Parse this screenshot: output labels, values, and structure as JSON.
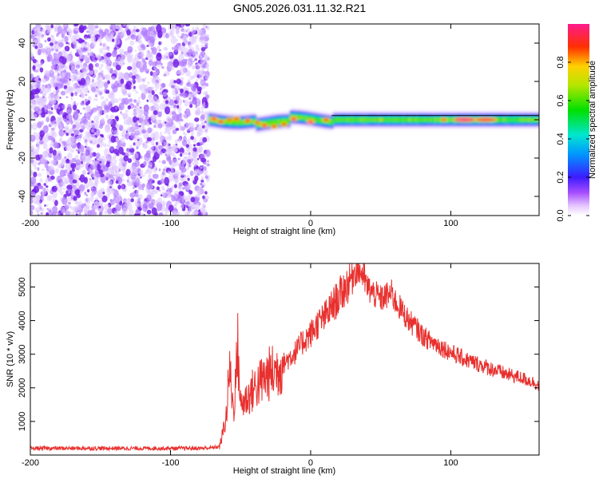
{
  "title": "GN05.2026.031.11.32.R21",
  "colors": {
    "snr_line": "#e8302e",
    "scatter_purple": "#7a2be2",
    "frame": "#000000"
  },
  "chart_data": [
    {
      "type": "heatmap",
      "title": "GN05.2026.031.11.32.R21",
      "xlabel": "Height of straight line (km)",
      "ylabel": "Frequency (Hz)",
      "xlim": [
        -200,
        163
      ],
      "ylim": [
        -50,
        50
      ],
      "xticks": [
        -200,
        -100,
        0,
        100
      ],
      "xtick_labels": [
        "-200",
        "-100",
        "0",
        "100"
      ],
      "yticks": [
        -40,
        -20,
        0,
        20,
        40
      ],
      "ytick_labels": [
        "-40",
        "-20",
        "0",
        "20",
        "40"
      ],
      "noise_region": {
        "x_start": -200,
        "x_end": -73,
        "amplitude_range": [
          0.0,
          0.15
        ]
      },
      "signal_band": {
        "x_start": -75,
        "x_end": 163,
        "frequency_center": 0,
        "half_width_hz": 3
      },
      "peaks": [
        {
          "x": -69,
          "y": 0.5,
          "amp": 0.95
        },
        {
          "x": -64,
          "y": -1,
          "amp": 0.9
        },
        {
          "x": -58,
          "y": 0,
          "amp": 0.85
        },
        {
          "x": -53,
          "y": 0.5,
          "amp": 0.9
        },
        {
          "x": -45,
          "y": -0.5,
          "amp": 0.9
        },
        {
          "x": -38,
          "y": -1.5,
          "amp": 0.85
        },
        {
          "x": -33,
          "y": -3,
          "amp": 0.92
        },
        {
          "x": -26,
          "y": -3.5,
          "amp": 0.9
        },
        {
          "x": -19,
          "y": -2.5,
          "amp": 0.88
        },
        {
          "x": -12,
          "y": 0.5,
          "amp": 0.95
        },
        {
          "x": 0,
          "y": -1,
          "amp": 0.98
        },
        {
          "x": 11,
          "y": 0,
          "amp": 0.9
        },
        {
          "x": 50,
          "y": 0,
          "amp": 0.7
        },
        {
          "x": 75,
          "y": 0,
          "amp": 0.65
        },
        {
          "x": 95,
          "y": 0,
          "amp": 0.85
        },
        {
          "x": 110,
          "y": 0,
          "amp": 1.0
        },
        {
          "x": 125,
          "y": 0,
          "amp": 0.95
        },
        {
          "x": 145,
          "y": 0,
          "amp": 0.6
        }
      ],
      "colorbar": {
        "label": "Normalized spectral amplitude",
        "range": [
          0,
          1
        ],
        "ticks": [
          0.0,
          0.2,
          0.4,
          0.6,
          0.8
        ],
        "tick_labels": [
          "0.0",
          "0.2",
          "0.4",
          "0.6",
          "0.8"
        ]
      }
    },
    {
      "type": "line",
      "xlabel": "Height of straight line (km)",
      "ylabel": "SNR (10 * v/v)",
      "xlim": [
        -200,
        163
      ],
      "ylim": [
        0,
        5700
      ],
      "xticks": [
        -200,
        -100,
        0,
        100
      ],
      "xtick_labels": [
        "-200",
        "-100",
        "0",
        "100"
      ],
      "yticks": [
        1000,
        2000,
        3000,
        4000,
        5000
      ],
      "ytick_labels": [
        "1000",
        "2000",
        "3000",
        "4000",
        "5000"
      ],
      "series": [
        {
          "name": "SNR",
          "x": [
            -200,
            -180,
            -160,
            -140,
            -120,
            -100,
            -80,
            -70,
            -65,
            -63,
            -60,
            -58,
            -55,
            -52,
            -50,
            -45,
            -40,
            -35,
            -30,
            -25,
            -20,
            -15,
            -10,
            -5,
            0,
            5,
            10,
            15,
            20,
            25,
            28,
            30,
            33,
            35,
            38,
            40,
            45,
            50,
            55,
            58,
            60,
            65,
            70,
            75,
            80,
            85,
            90,
            100,
            110,
            120,
            130,
            140,
            150,
            160,
            163
          ],
          "y": [
            200,
            200,
            200,
            200,
            200,
            200,
            200,
            220,
            250,
            600,
            1200,
            2600,
            1300,
            3200,
            1500,
            1700,
            2000,
            2200,
            2400,
            2500,
            2700,
            2900,
            3100,
            3400,
            3600,
            3900,
            4100,
            4400,
            4700,
            5000,
            5200,
            5400,
            5550,
            5500,
            5300,
            5000,
            4800,
            4650,
            4750,
            4800,
            4600,
            4300,
            4000,
            3800,
            3550,
            3400,
            3300,
            3050,
            2850,
            2700,
            2550,
            2400,
            2300,
            2150,
            2050
          ]
        }
      ]
    }
  ]
}
